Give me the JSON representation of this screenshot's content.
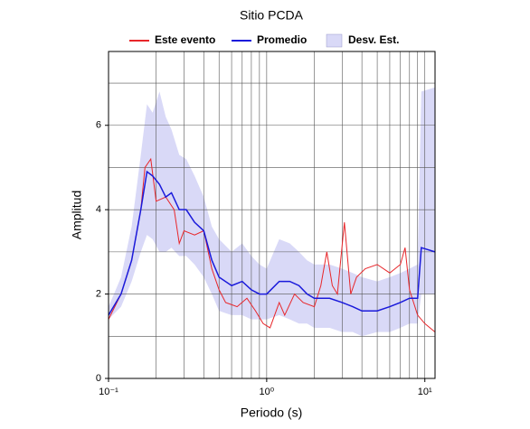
{
  "chart_data": {
    "type": "line",
    "title": "Sitio PCDA",
    "x_label": "Periodo (s)",
    "y_label": "Amplitud",
    "x_log": true,
    "xlim": [
      0.1,
      11.6
    ],
    "ylim": [
      0,
      7.75
    ],
    "xticks": [
      {
        "value": 0.1,
        "label": "10⁻¹"
      },
      {
        "value": 1,
        "label": "10⁰"
      },
      {
        "value": 10,
        "label": "10¹"
      }
    ],
    "x_minor_ticks": [
      0.2,
      0.3,
      0.4,
      0.5,
      0.6,
      0.7,
      0.8,
      0.9,
      2,
      3,
      4,
      5,
      6,
      7,
      8,
      9
    ],
    "yticks": [
      0,
      2,
      4,
      6
    ],
    "y_minor_ticks": [
      1,
      3,
      5,
      7
    ],
    "grid": true,
    "legend": "top",
    "series": [
      {
        "name": "Este evento",
        "color": "#e8262a",
        "x": [
          0.1,
          0.12,
          0.14,
          0.16,
          0.17,
          0.185,
          0.2,
          0.23,
          0.26,
          0.28,
          0.3,
          0.35,
          0.4,
          0.45,
          0.5,
          0.55,
          0.65,
          0.75,
          0.85,
          0.95,
          1.05,
          1.2,
          1.3,
          1.5,
          1.7,
          2.0,
          2.2,
          2.4,
          2.6,
          2.8,
          3.1,
          3.4,
          3.7,
          4.2,
          5.0,
          6.0,
          7.0,
          7.5,
          8.0,
          9.0,
          10.0,
          11.6
        ],
        "values": [
          1.4,
          2.0,
          2.8,
          4.0,
          5.0,
          5.2,
          4.2,
          4.3,
          4.0,
          3.2,
          3.5,
          3.4,
          3.5,
          2.6,
          2.1,
          1.8,
          1.7,
          1.9,
          1.6,
          1.3,
          1.2,
          1.8,
          1.5,
          2.0,
          1.8,
          1.7,
          2.2,
          3.0,
          2.2,
          2.0,
          3.7,
          2.0,
          2.4,
          2.6,
          2.7,
          2.5,
          2.7,
          3.1,
          2.1,
          1.5,
          1.3,
          1.1
        ]
      },
      {
        "name": "Promedio",
        "color": "#1a1adb",
        "x": [
          0.1,
          0.12,
          0.14,
          0.16,
          0.175,
          0.19,
          0.21,
          0.23,
          0.25,
          0.28,
          0.31,
          0.35,
          0.4,
          0.45,
          0.5,
          0.6,
          0.7,
          0.8,
          0.9,
          1.0,
          1.2,
          1.4,
          1.6,
          1.8,
          2.0,
          2.5,
          3.0,
          3.5,
          4.0,
          5.0,
          6.0,
          7.0,
          8.0,
          9.0,
          9.5,
          11.6
        ],
        "values": [
          1.5,
          2.0,
          2.8,
          4.0,
          4.9,
          4.8,
          4.6,
          4.3,
          4.4,
          4.0,
          4.0,
          3.7,
          3.5,
          2.8,
          2.4,
          2.2,
          2.3,
          2.1,
          2.0,
          2.0,
          2.3,
          2.3,
          2.2,
          2.0,
          1.9,
          1.9,
          1.8,
          1.7,
          1.6,
          1.6,
          1.7,
          1.8,
          1.9,
          1.9,
          3.1,
          3.0
        ]
      },
      {
        "name": "Desv. Est.",
        "color": "#d9d9f7",
        "x": [
          0.1,
          0.12,
          0.14,
          0.16,
          0.175,
          0.19,
          0.21,
          0.23,
          0.25,
          0.28,
          0.31,
          0.35,
          0.4,
          0.45,
          0.5,
          0.6,
          0.7,
          0.8,
          0.9,
          1.0,
          1.2,
          1.4,
          1.6,
          1.8,
          2.0,
          2.5,
          3.0,
          3.5,
          4.0,
          5.0,
          6.0,
          7.0,
          8.0,
          9.0,
          9.5,
          11.6
        ],
        "lower": [
          1.4,
          1.7,
          2.3,
          3.0,
          3.4,
          3.3,
          3.0,
          3.0,
          3.1,
          2.9,
          2.9,
          2.7,
          2.4,
          2.0,
          1.6,
          1.5,
          1.5,
          1.4,
          1.4,
          1.4,
          1.5,
          1.4,
          1.3,
          1.3,
          1.2,
          1.2,
          1.1,
          1.1,
          1.0,
          1.1,
          1.1,
          1.2,
          1.3,
          1.3,
          2.0,
          2.0
        ],
        "upper": [
          1.7,
          2.4,
          3.6,
          5.3,
          6.5,
          6.3,
          6.8,
          6.2,
          5.9,
          5.3,
          5.2,
          4.8,
          4.3,
          3.6,
          3.3,
          3.0,
          3.2,
          2.9,
          2.7,
          2.6,
          3.3,
          3.2,
          3.0,
          2.8,
          2.7,
          2.7,
          2.6,
          2.5,
          2.4,
          2.3,
          2.4,
          2.5,
          2.6,
          2.7,
          6.8,
          6.9
        ]
      }
    ]
  }
}
